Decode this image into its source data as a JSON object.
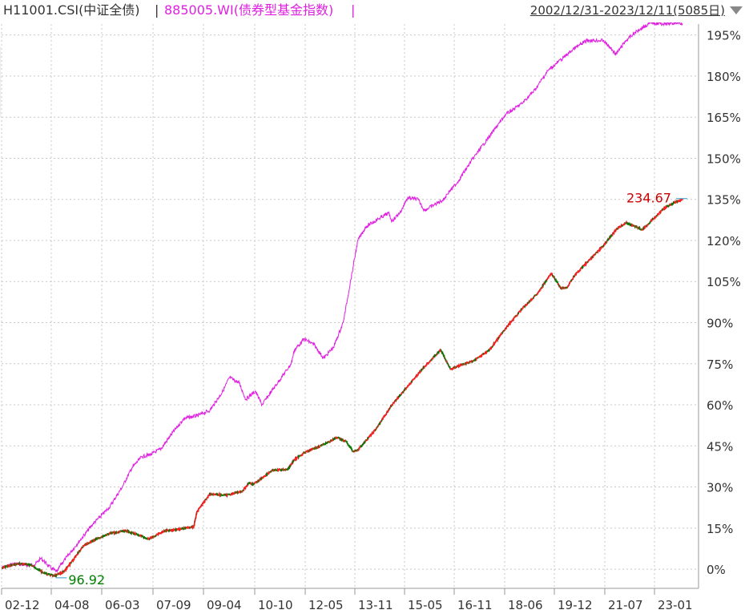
{
  "header": {
    "series1_label": "H11001.CSI(中证全债)",
    "separator": "|",
    "series2_label": "885005.WI(债券型基金指数)",
    "date_range": "2002/12/31-2023/12/11(5085日)",
    "dropdown_icon": "triangle-down-icon"
  },
  "colors": {
    "series1_up": "#ff2020",
    "series1_down": "#008000",
    "series1_base": "#7a1a10",
    "series2": "#e020e0",
    "grid": "#c8c8c8",
    "axis_text": "#333333",
    "max_label": "#cc0000",
    "min_label": "#008000"
  },
  "chart_data": {
    "type": "line",
    "x_ticks": [
      "02-12",
      "04-08",
      "06-03",
      "07-09",
      "09-04",
      "10-10",
      "12-05",
      "13-11",
      "15-05",
      "16-11",
      "18-06",
      "19-12",
      "21-07",
      "23-01"
    ],
    "y_ticks": [
      "195%",
      "180%",
      "165%",
      "150%",
      "135%",
      "120%",
      "105%",
      "90%",
      "75%",
      "60%",
      "45%",
      "30%",
      "15%",
      "0%"
    ],
    "ylim": [
      -7,
      199
    ],
    "grid": true,
    "annotations": {
      "max_label": "234.67",
      "min_label": "96.92"
    },
    "series": [
      {
        "name": "H11001.CSI(中证全债)",
        "x": [
          2002.99,
          2003.5,
          2003.9,
          2004.3,
          2004.6,
          2004.9,
          2005.2,
          2005.5,
          2005.9,
          2006.3,
          2006.8,
          2007.2,
          2007.5,
          2007.7,
          2007.75,
          2008.0,
          2008.4,
          2008.9,
          2009.0,
          2009.4,
          2009.9,
          2010.4,
          2010.6,
          2010.75,
          2011.3,
          2011.8,
          2012.0,
          2012.3,
          2012.6,
          2012.9,
          2013.3,
          2013.6,
          2013.8,
          2013.95,
          2014.5,
          2015.0,
          2015.5,
          2016.0,
          2016.5,
          2016.8,
          2017.0,
          2017.5,
          2018.0,
          2018.5,
          2019.0,
          2019.5,
          2019.9,
          2020.2,
          2020.4,
          2020.6,
          2021.0,
          2021.5,
          2021.9,
          2022.2,
          2022.7,
          2022.9,
          2023.0,
          2023.4,
          2023.8,
          2023.94
        ],
        "values": [
          0.5,
          2.0,
          1.5,
          -1.5,
          -2.5,
          -1.0,
          3.5,
          8.5,
          11.0,
          13.0,
          14.0,
          12.5,
          11.0,
          12.0,
          12.5,
          14.0,
          14.5,
          15.5,
          21.0,
          27.5,
          27.0,
          28.5,
          31.5,
          31.0,
          36.0,
          36.5,
          40.0,
          42.5,
          44.0,
          45.5,
          48.0,
          46.5,
          43.0,
          43.5,
          51.0,
          60.0,
          67.0,
          74.0,
          80.0,
          73.0,
          74.0,
          76.0,
          80.0,
          88.0,
          95.0,
          101.0,
          108.0,
          102.5,
          103.0,
          107.0,
          112.0,
          118.0,
          124.0,
          126.5,
          124.0,
          126.0,
          127.5,
          132.0,
          134.5,
          134.7
        ]
      },
      {
        "name": "885005.WI(债券型基金指数)",
        "x": [
          2002.99,
          2003.4,
          2003.7,
          2004.0,
          2004.2,
          2004.5,
          2004.7,
          2004.8,
          2005.0,
          2005.4,
          2005.8,
          2006.3,
          2006.7,
          2007.0,
          2007.3,
          2007.6,
          2007.9,
          2008.2,
          2008.6,
          2009.0,
          2009.4,
          2009.8,
          2010.0,
          2010.3,
          2010.5,
          2010.8,
          2011.0,
          2011.3,
          2011.6,
          2011.9,
          2012.0,
          2012.3,
          2012.6,
          2012.9,
          2013.2,
          2013.5,
          2013.8,
          2013.95,
          2014.2,
          2014.6,
          2014.9,
          2015.0,
          2015.3,
          2015.4,
          2015.5,
          2015.8,
          2016.0,
          2016.3,
          2016.6,
          2016.7,
          2017.0,
          2017.5,
          2018.0,
          2018.5,
          2019.0,
          2019.4,
          2019.8,
          2020.2,
          2020.6,
          2021.0,
          2021.5,
          2021.9,
          2022.2,
          2022.6,
          2022.9,
          2023.0,
          2023.4,
          2023.8,
          2023.94
        ],
        "values": [
          0.5,
          2.0,
          1.5,
          1.5,
          4.0,
          0.5,
          -1.0,
          1.5,
          4.5,
          10.5,
          16.5,
          22.5,
          30.0,
          37.0,
          41.0,
          42.0,
          44.0,
          49.0,
          55.0,
          56.0,
          58.0,
          65.0,
          70.0,
          68.0,
          62.0,
          65.0,
          60.0,
          65.0,
          70.0,
          75.0,
          80.0,
          84.0,
          82.0,
          77.0,
          81.0,
          90.0,
          110.0,
          120.0,
          125.0,
          128.0,
          130.0,
          127.0,
          131.0,
          134.0,
          135.5,
          135.0,
          131.0,
          133.0,
          135.0,
          137.0,
          141.0,
          150.0,
          158.0,
          166.0,
          170.0,
          175.0,
          182.0,
          186.0,
          190.0,
          193.0,
          193.0,
          188.0,
          193.0,
          197.0,
          199.0,
          199.5,
          199.0,
          199.5,
          199.2
        ]
      }
    ]
  }
}
